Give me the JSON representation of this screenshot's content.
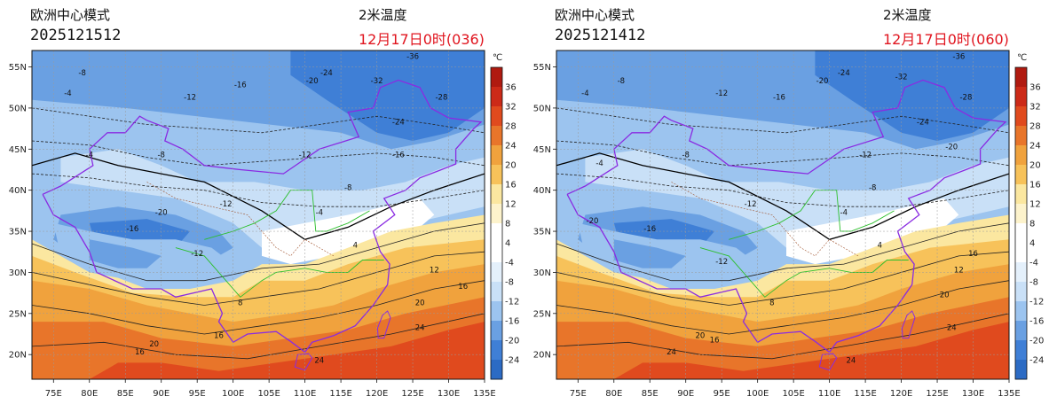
{
  "colors": {
    "cold_dark": "#3f7fd6",
    "cold": "#6aa0e2",
    "cool": "#9cc4ef",
    "cool_light": "#c9e0f7",
    "near_zero": "#ffffff",
    "mild": "#fbe7a0",
    "warm": "#f7c25a",
    "warmer": "#f0a23d",
    "hot": "#e8752a",
    "hotter": "#e04a1e",
    "border": "#8a2be2",
    "title_red": "#e0141e"
  },
  "colorbar": {
    "unit": "℃",
    "labels": [
      "36",
      "32",
      "28",
      "24",
      "20",
      "16",
      "12",
      "8",
      "4",
      "-4",
      "-8",
      "-12",
      "-16",
      "-20",
      "-24"
    ]
  },
  "axes": {
    "x_ticks": [
      "75E",
      "80E",
      "85E",
      "90E",
      "95E",
      "100E",
      "105E",
      "110E",
      "115E",
      "120E",
      "125E",
      "130E",
      "135E"
    ],
    "y_ticks": [
      "55N",
      "50N",
      "45N",
      "40N",
      "35N",
      "30N",
      "25N",
      "20N"
    ]
  },
  "panels": [
    {
      "model": "欧洲中心模式",
      "run": "2025121512",
      "variable": "2米温度",
      "valid": "12月17日0时(036)"
    },
    {
      "model": "欧洲中心模式",
      "run": "2025121412",
      "variable": "2米温度",
      "valid": "12月17日0时(060)"
    }
  ],
  "contour_labels": [
    "-36",
    "-32",
    "-28",
    "-24",
    "-20",
    "-16",
    "-12",
    "-8",
    "-4",
    "4",
    "8",
    "12",
    "16",
    "20",
    "24"
  ]
}
